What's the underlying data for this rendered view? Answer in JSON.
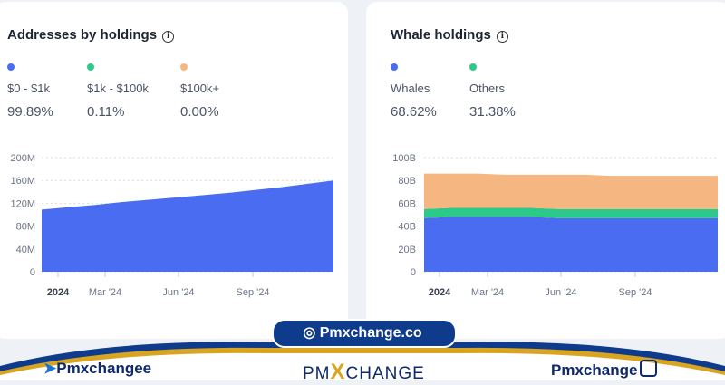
{
  "left_card": {
    "title": "Addresses by holdings",
    "legend": [
      {
        "label": "$0 - $1k",
        "pct": "99.89%",
        "color": "#4a6cf0"
      },
      {
        "label": "$1k - $100k",
        "pct": "0.11%",
        "color": "#2dc98a"
      },
      {
        "label": "$100k+",
        "pct": "0.00%",
        "color": "#f5b681"
      }
    ]
  },
  "right_card": {
    "title": "Whale holdings",
    "legend": [
      {
        "label": "Whales",
        "pct": "68.62%",
        "color": "#4a6cf0"
      },
      {
        "label": "Others",
        "pct": "31.38%",
        "color": "#2dc98a"
      }
    ]
  },
  "chart_data": [
    {
      "type": "area",
      "x": [
        "2024-01",
        "2024-02",
        "2024-03",
        "2024-04",
        "2024-05",
        "2024-06",
        "2024-07",
        "2024-08",
        "2024-09",
        "2024-10",
        "2024-11",
        "2024-12"
      ],
      "series": [
        {
          "name": "$0 - $1k",
          "values": [
            109,
            113,
            117,
            122,
            126,
            130,
            134,
            138,
            143,
            148,
            154,
            160
          ],
          "color": "#4a6cf0"
        }
      ],
      "yticks": [
        "0",
        "40M",
        "80M",
        "120M",
        "160M",
        "200M"
      ],
      "ylim": [
        0,
        200
      ],
      "xticks": [
        "2024",
        "Mar '24",
        "Jun '24",
        "Sep '24"
      ],
      "grid": true
    },
    {
      "type": "area",
      "x": [
        "2024-01",
        "2024-02",
        "2024-03",
        "2024-04",
        "2024-05",
        "2024-06",
        "2024-07",
        "2024-08",
        "2024-09",
        "2024-10",
        "2024-11",
        "2024-12"
      ],
      "series": [
        {
          "name": "Whales",
          "values": [
            47,
            48,
            48,
            48,
            48,
            47,
            47,
            47,
            47,
            47,
            47,
            47
          ],
          "color": "#4a6cf0"
        },
        {
          "name": "Others",
          "values": [
            8,
            8,
            8,
            8,
            8,
            8,
            8,
            8,
            8,
            8,
            8,
            8
          ],
          "color": "#2dc98a"
        },
        {
          "name": "",
          "values": [
            31,
            30,
            30,
            29,
            29,
            30,
            30,
            29,
            29,
            29,
            29,
            29
          ],
          "color": "#f5b681"
        }
      ],
      "yticks": [
        "0",
        "20B",
        "40B",
        "60B",
        "80B",
        "100B"
      ],
      "ylim": [
        0,
        100
      ],
      "xticks": [
        "2024",
        "Mar '24",
        "Jun '24",
        "Sep '24"
      ],
      "grid": true
    }
  ],
  "banner": {
    "site": "Pmxchange.co",
    "left_handle": "Pmxchangee",
    "logo_left": "PM",
    "logo_right": "CHANGE",
    "right_handle": "Pmxchange",
    "colors": {
      "navy": "#0e3b8c",
      "gold": "#d9a521"
    }
  }
}
